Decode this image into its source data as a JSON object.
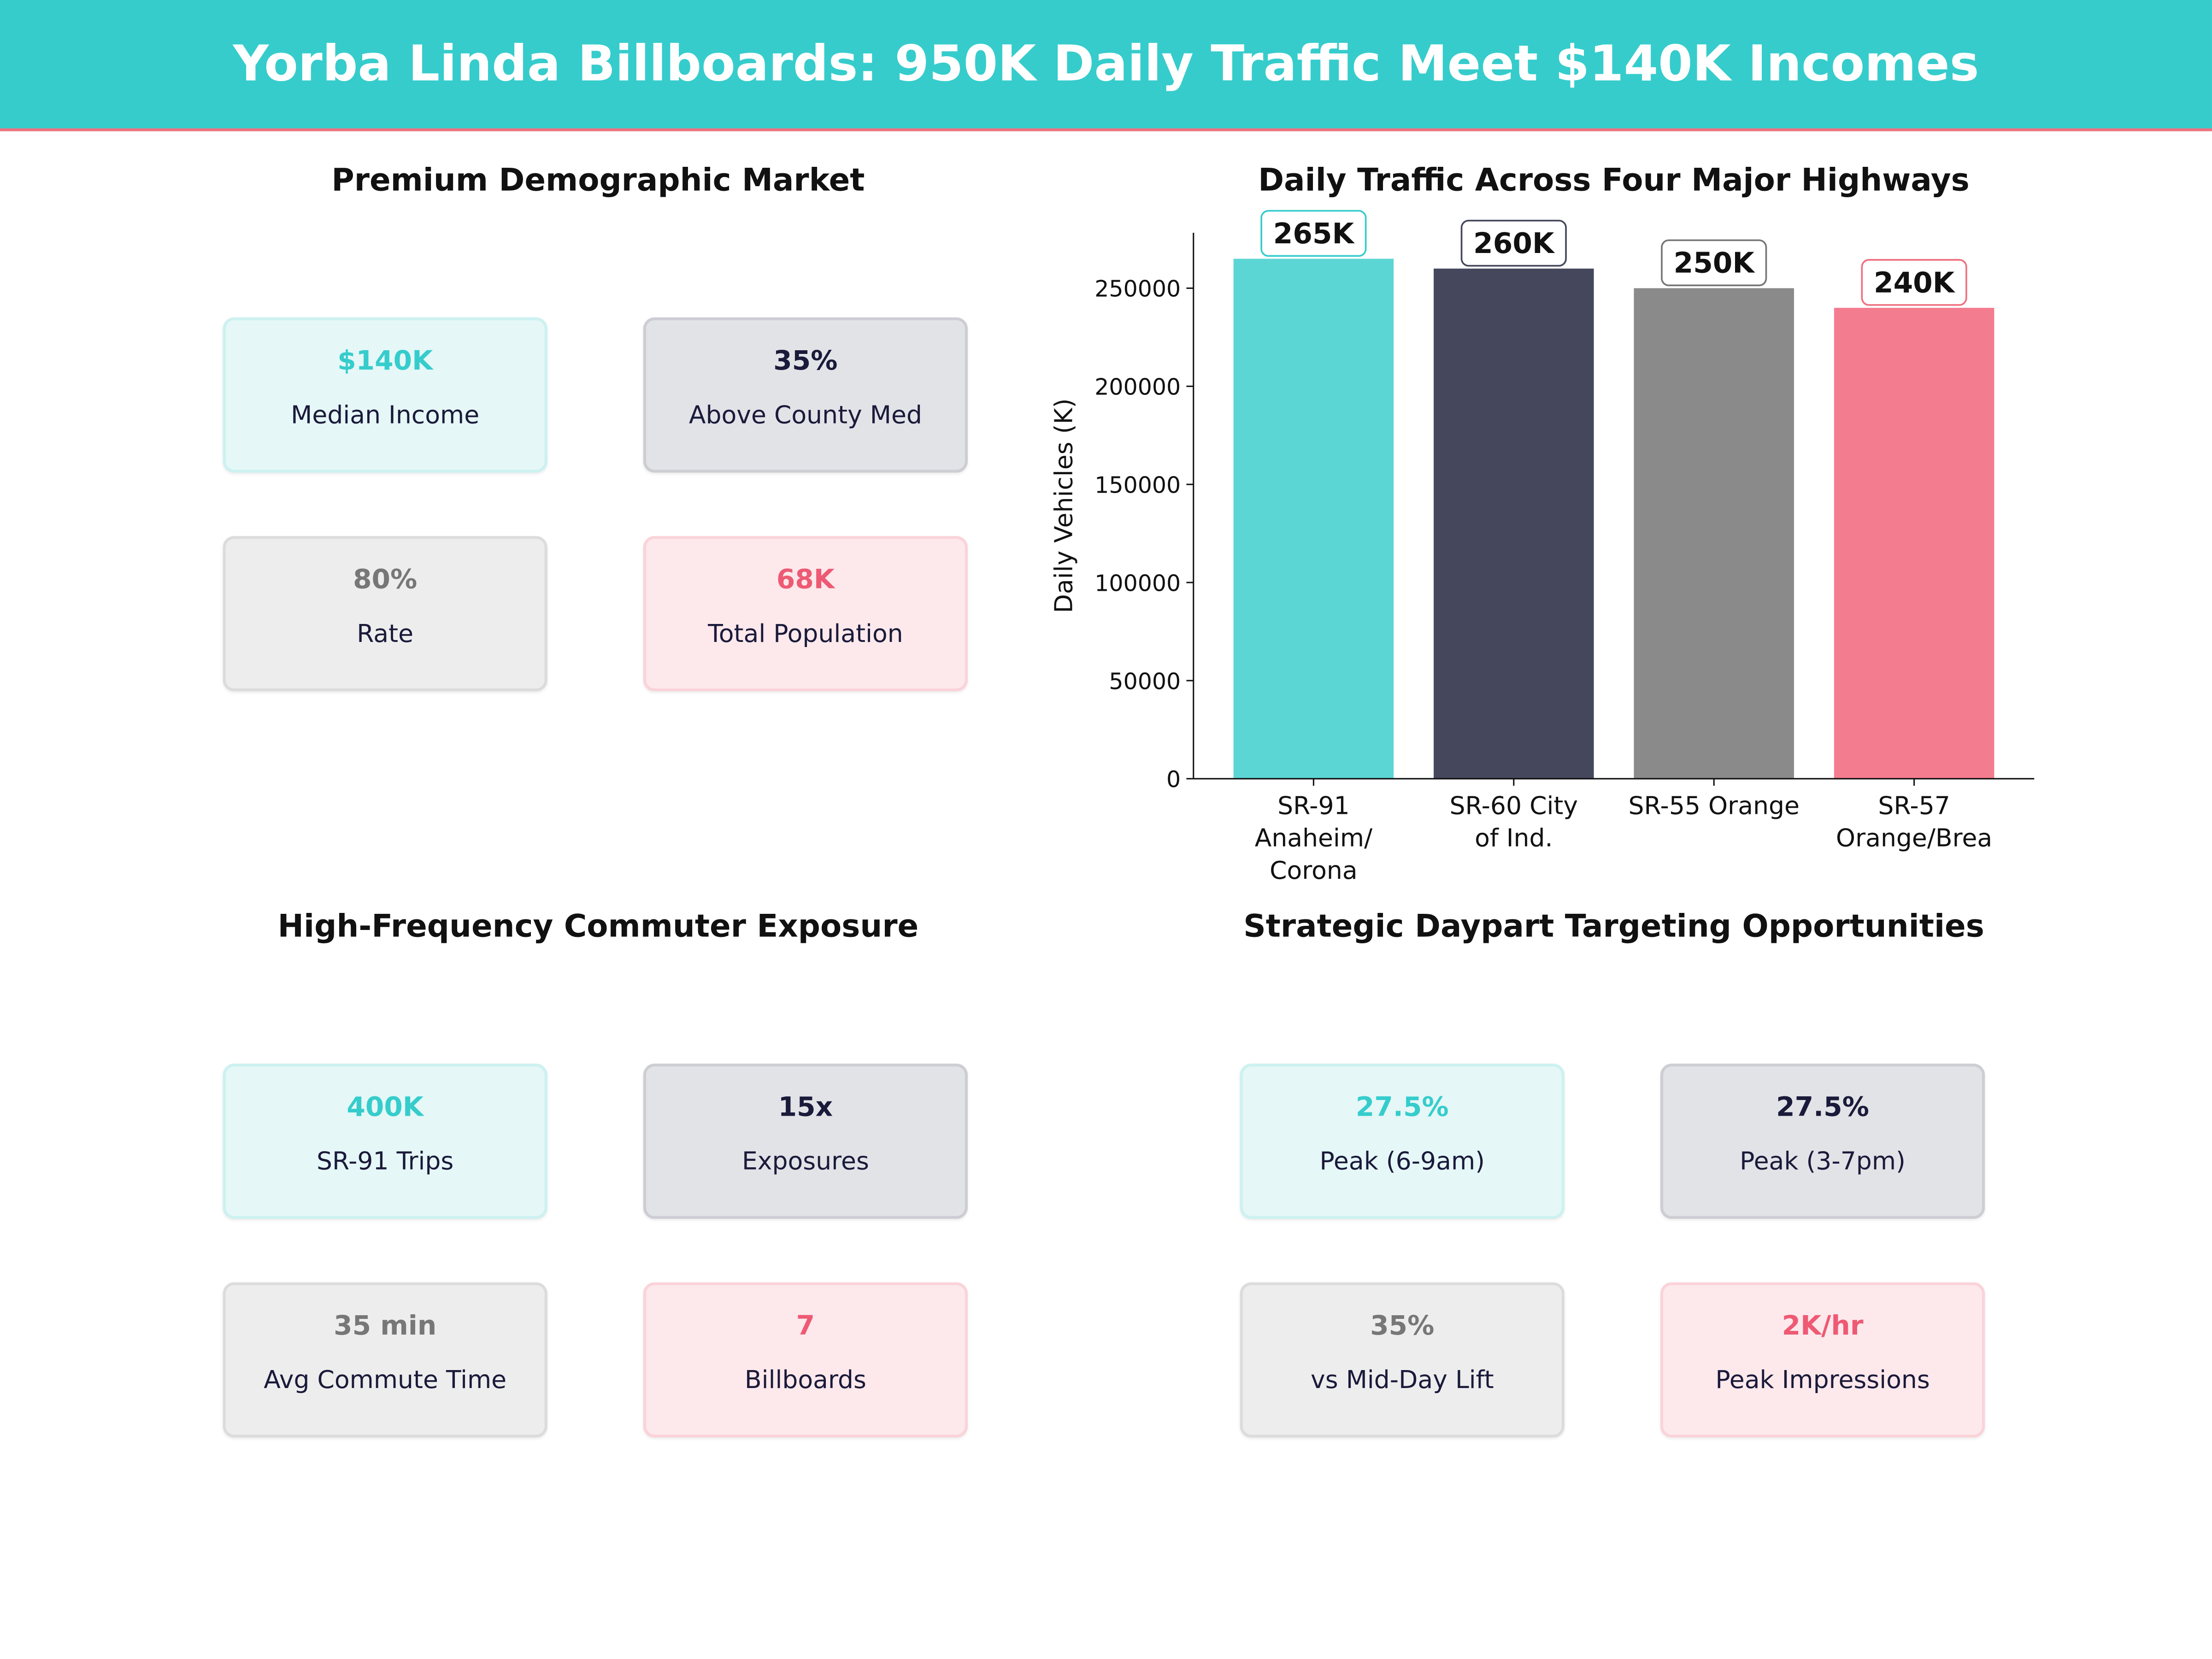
{
  "header": {
    "title": "Yorba Linda Billboards: 950K Daily Traffic Meet $140K Incomes"
  },
  "colors": {
    "teal": "#36cccc",
    "navy": "#45485d",
    "gray": "#8a8a8a",
    "pink": "#f47c8f"
  },
  "panels": [
    {
      "title": "Premium Demographic Market",
      "cards": [
        {
          "value": "$140K",
          "label": "Median Income"
        },
        {
          "value": "35%",
          "label": "Above County Med"
        },
        {
          "value": "80%",
          "label": "Rate"
        },
        {
          "value": "68K",
          "label": "Total Population"
        }
      ]
    },
    {
      "title": "High-Frequency Commuter Exposure",
      "cards": [
        {
          "value": "400K",
          "label": "SR-91  Trips"
        },
        {
          "value": "15x",
          "label": "Exposures"
        },
        {
          "value": "35 min",
          "label": "Avg Commute Time"
        },
        {
          "value": "7",
          "label": "Billboards"
        }
      ]
    },
    {
      "title": "Strategic Daypart Targeting Opportunities",
      "cards": [
        {
          "value": "27.5%",
          "label": "Peak (6-9am)"
        },
        {
          "value": "27.5%",
          "label": "Peak (3-7pm)"
        },
        {
          "value": "35%",
          "label": "vs Mid-Day Lift"
        },
        {
          "value": "2K/hr",
          "label": "Peak Impressions"
        }
      ]
    }
  ],
  "chart_data": {
    "type": "bar",
    "title": "Daily Traffic Across Four Major Highways",
    "ylabel": "Daily Vehicles (K)",
    "xlabel": "",
    "categories": [
      [
        "SR-91",
        "Anaheim/",
        "Corona"
      ],
      [
        "SR-60 City",
        "of Ind."
      ],
      [
        "SR-55 Orange"
      ],
      [
        "SR-57",
        "Orange/Brea"
      ]
    ],
    "values": [
      265000,
      260000,
      250000,
      240000
    ],
    "data_labels": [
      "265K",
      "260K",
      "250K",
      "240K"
    ],
    "bar_colors": [
      "#5cd6d4",
      "#45485d",
      "#8a8a8a",
      "#f47c8f"
    ],
    "label_border_colors": [
      "#36cccc",
      "#45485d",
      "#777777",
      "#f07080"
    ],
    "yticks": [
      0,
      50000,
      100000,
      150000,
      200000,
      250000
    ],
    "ylim": [
      0,
      278250
    ],
    "grid": false
  }
}
